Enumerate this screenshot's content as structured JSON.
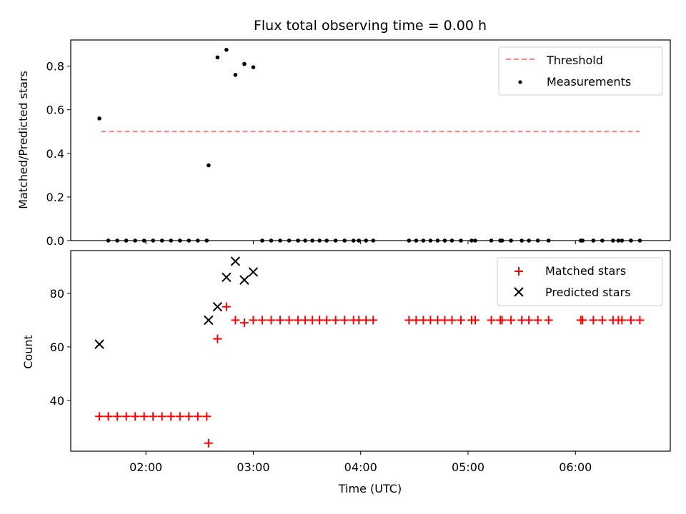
{
  "chart_data": [
    {
      "type": "scatter",
      "title": "Flux total observing time = 0.00 h",
      "xlabel": "",
      "ylabel": "Matched/Predicted stars",
      "xlim": [
        "01:18",
        "06:53"
      ],
      "ylim": [
        0,
        0.92
      ],
      "yticks": [
        "0.0",
        "0.2",
        "0.4",
        "0.6",
        "0.8"
      ],
      "legend_position": "top-right",
      "series": [
        {
          "name": "Threshold",
          "style": "dashed-line",
          "color": "#ff8080",
          "x": [
            "01:35",
            "06:36"
          ],
          "y": [
            0.5,
            0.5
          ]
        },
        {
          "name": "Measurements",
          "style": "dot",
          "color": "#000000",
          "points": [
            [
              "01:34",
              0.56
            ],
            [
              "01:39",
              0.0
            ],
            [
              "01:44",
              0.0
            ],
            [
              "01:49",
              0.0
            ],
            [
              "01:54",
              0.0
            ],
            [
              "01:59",
              0.0
            ],
            [
              "02:04",
              0.0
            ],
            [
              "02:09",
              0.0
            ],
            [
              "02:14",
              0.0
            ],
            [
              "02:19",
              0.0
            ],
            [
              "02:24",
              0.0
            ],
            [
              "02:29",
              0.0
            ],
            [
              "02:34",
              0.0
            ],
            [
              "02:35",
              0.345
            ],
            [
              "02:40",
              0.84
            ],
            [
              "02:45",
              0.875
            ],
            [
              "02:50",
              0.76
            ],
            [
              "02:55",
              0.81
            ],
            [
              "03:00",
              0.795
            ],
            [
              "03:05",
              0.0
            ],
            [
              "03:10",
              0.0
            ],
            [
              "03:15",
              0.0
            ],
            [
              "03:20",
              0.0
            ],
            [
              "03:25",
              0.0
            ],
            [
              "03:29",
              0.0
            ],
            [
              "03:33",
              0.0
            ],
            [
              "03:37",
              0.0
            ],
            [
              "03:41",
              0.0
            ],
            [
              "03:46",
              0.0
            ],
            [
              "03:51",
              0.0
            ],
            [
              "03:56",
              0.0
            ],
            [
              "03:59",
              0.0
            ],
            [
              "04:03",
              0.0
            ],
            [
              "04:07",
              0.0
            ],
            [
              "04:27",
              0.0
            ],
            [
              "04:31",
              0.0
            ],
            [
              "04:35",
              0.0
            ],
            [
              "04:39",
              0.0
            ],
            [
              "04:43",
              0.0
            ],
            [
              "04:47",
              0.0
            ],
            [
              "04:51",
              0.0
            ],
            [
              "04:56",
              0.0
            ],
            [
              "05:02",
              0.0
            ],
            [
              "05:04",
              0.0
            ],
            [
              "05:13",
              0.0
            ],
            [
              "05:18",
              0.0
            ],
            [
              "05:19",
              0.0
            ],
            [
              "05:24",
              0.0
            ],
            [
              "05:30",
              0.0
            ],
            [
              "05:34",
              0.0
            ],
            [
              "05:39",
              0.0
            ],
            [
              "05:45",
              0.0
            ],
            [
              "06:03",
              0.0
            ],
            [
              "06:04",
              0.0
            ],
            [
              "06:10",
              0.0
            ],
            [
              "06:15",
              0.0
            ],
            [
              "06:21",
              0.0
            ],
            [
              "06:24",
              0.0
            ],
            [
              "06:26",
              0.0
            ],
            [
              "06:31",
              0.0
            ],
            [
              "06:36",
              0.0
            ]
          ]
        }
      ]
    },
    {
      "type": "scatter",
      "title": "",
      "xlabel": "Time (UTC)",
      "ylabel": "Count",
      "xlim": [
        "01:18",
        "06:53"
      ],
      "ylim": [
        21,
        96
      ],
      "yticks": [
        "40",
        "60",
        "80"
      ],
      "xticks": [
        "02:00",
        "03:00",
        "04:00",
        "05:00",
        "06:00"
      ],
      "legend_position": "top-right",
      "series": [
        {
          "name": "Matched stars",
          "marker": "plus",
          "color": "#ff0000",
          "points": [
            [
              "01:34",
              34
            ],
            [
              "01:39",
              34
            ],
            [
              "01:44",
              34
            ],
            [
              "01:49",
              34
            ],
            [
              "01:54",
              34
            ],
            [
              "01:59",
              34
            ],
            [
              "02:04",
              34
            ],
            [
              "02:09",
              34
            ],
            [
              "02:14",
              34
            ],
            [
              "02:19",
              34
            ],
            [
              "02:24",
              34
            ],
            [
              "02:29",
              34
            ],
            [
              "02:34",
              34
            ],
            [
              "02:35",
              24
            ],
            [
              "02:40",
              63
            ],
            [
              "02:45",
              75
            ],
            [
              "02:50",
              70
            ],
            [
              "02:55",
              69
            ],
            [
              "03:00",
              70
            ],
            [
              "03:05",
              70
            ],
            [
              "03:10",
              70
            ],
            [
              "03:15",
              70
            ],
            [
              "03:20",
              70
            ],
            [
              "03:25",
              70
            ],
            [
              "03:29",
              70
            ],
            [
              "03:33",
              70
            ],
            [
              "03:37",
              70
            ],
            [
              "03:41",
              70
            ],
            [
              "03:46",
              70
            ],
            [
              "03:51",
              70
            ],
            [
              "03:56",
              70
            ],
            [
              "03:59",
              70
            ],
            [
              "04:03",
              70
            ],
            [
              "04:07",
              70
            ],
            [
              "04:27",
              70
            ],
            [
              "04:31",
              70
            ],
            [
              "04:35",
              70
            ],
            [
              "04:39",
              70
            ],
            [
              "04:43",
              70
            ],
            [
              "04:47",
              70
            ],
            [
              "04:51",
              70
            ],
            [
              "04:56",
              70
            ],
            [
              "05:02",
              70
            ],
            [
              "05:04",
              70
            ],
            [
              "05:13",
              70
            ],
            [
              "05:18",
              70
            ],
            [
              "05:19",
              70
            ],
            [
              "05:24",
              70
            ],
            [
              "05:30",
              70
            ],
            [
              "05:34",
              70
            ],
            [
              "05:39",
              70
            ],
            [
              "05:45",
              70
            ],
            [
              "06:03",
              70
            ],
            [
              "06:04",
              70
            ],
            [
              "06:10",
              70
            ],
            [
              "06:15",
              70
            ],
            [
              "06:21",
              70
            ],
            [
              "06:24",
              70
            ],
            [
              "06:26",
              70
            ],
            [
              "06:31",
              70
            ],
            [
              "06:36",
              70
            ]
          ]
        },
        {
          "name": "Predicted stars",
          "marker": "x",
          "color": "#000000",
          "points": [
            [
              "01:34",
              61
            ],
            [
              "02:35",
              70
            ],
            [
              "02:40",
              75
            ],
            [
              "02:45",
              86
            ],
            [
              "02:50",
              92
            ],
            [
              "02:55",
              85
            ],
            [
              "03:00",
              88
            ]
          ]
        }
      ]
    }
  ]
}
